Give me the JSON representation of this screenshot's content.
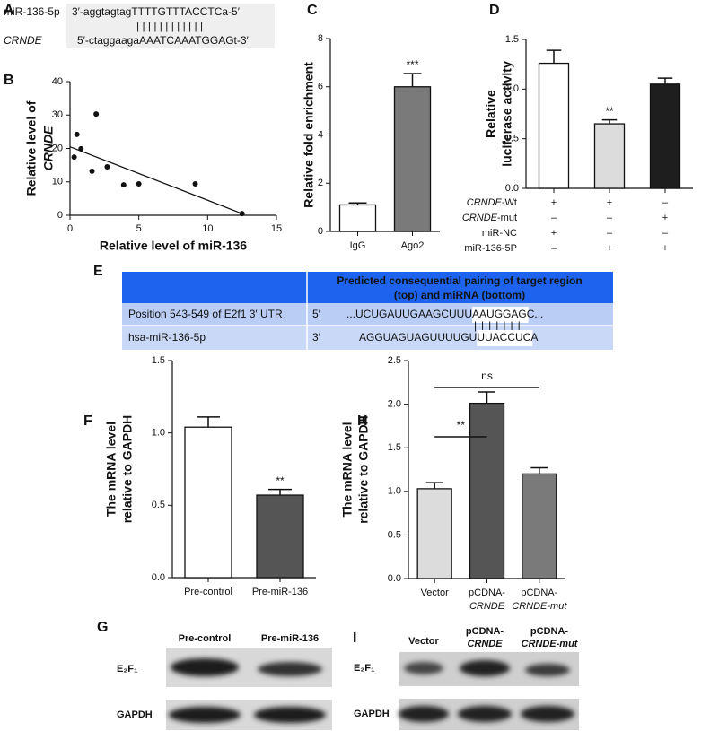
{
  "panel_a": {
    "panel": "A",
    "rows": [
      {
        "name": "miR-136-5p",
        "sequence": "3′-aggtagtagTTTTGTTTACCTCa-5′"
      },
      {
        "name": "CRNDE",
        "sequence": "5′-ctaggaagaAAATCAAATGGAGt-3′"
      }
    ],
    "pairing": "| | | | | | | | | | | |"
  },
  "chart_data": [
    {
      "panel": "B",
      "type": "scatter",
      "xlabel": "Relative level of miR-136",
      "ylabel": [
        "Relative level of",
        "CRNDE"
      ],
      "x": [
        0.3,
        0.5,
        0.8,
        1.6,
        1.9,
        2.7,
        3.9,
        5.0,
        9.1,
        12.5
      ],
      "y": [
        17.4,
        24.2,
        19.9,
        13.2,
        30.3,
        14.5,
        9.1,
        9.4,
        9.4,
        0.5
      ],
      "trendline": {
        "x": [
          0,
          12.5
        ],
        "y": [
          20.5,
          0.5
        ]
      },
      "color": "#111",
      "xlim": [
        0,
        15
      ],
      "xticks": [
        0,
        5,
        10,
        15
      ],
      "ylim": [
        0,
        40
      ],
      "yticks": [
        0,
        10,
        20,
        30,
        40
      ]
    },
    {
      "panel": "C",
      "type": "bar",
      "ylabel": [
        "Relative fold enrichment"
      ],
      "categories": [
        "IgG",
        "Ago2"
      ],
      "values": [
        1.1,
        6.0
      ],
      "errors": [
        0.08,
        0.55
      ],
      "colors": [
        "#ffffff",
        "#7a7a7a"
      ],
      "ylim": [
        0,
        8
      ],
      "yticks": [
        0,
        2,
        4,
        6,
        8
      ],
      "annotations": [
        {
          "text": "***",
          "index": 1
        }
      ]
    },
    {
      "panel": "D",
      "type": "bar",
      "ylabel": [
        "Relative",
        "luciferase activity"
      ],
      "values": [
        1.26,
        0.65,
        1.05
      ],
      "errors": [
        0.13,
        0.04,
        0.06
      ],
      "colors": [
        "#ffffff",
        "#dcdcdc",
        "#1e1e1e"
      ],
      "ylim": [
        0,
        1.5
      ],
      "yticks": [
        {
          "value": 0,
          "label": "0.0"
        },
        {
          "value": 0.5,
          "label": "0.5"
        },
        {
          "value": 1,
          "label": "1.0"
        },
        {
          "value": 1.5,
          "label": "1.5"
        }
      ],
      "annotations": [
        {
          "text": "**",
          "index": 1
        }
      ],
      "conditions": [
        {
          "label": [
            "CRNDE",
            "-Wt"
          ],
          "marks": [
            "+",
            "+",
            "–"
          ]
        },
        {
          "label": [
            "CRNDE",
            "-mut"
          ],
          "marks": [
            "–",
            "–",
            "+"
          ]
        },
        {
          "label": [
            "miR-NC"
          ],
          "marks": [
            "+",
            "–",
            "–"
          ]
        },
        {
          "label": [
            "miR-136-5P"
          ],
          "marks": [
            "–",
            "+",
            "+"
          ]
        }
      ]
    },
    {
      "panel": "F",
      "type": "bar",
      "ylabel": [
        "The mRNA level",
        "relative to GAPDH"
      ],
      "categories": [
        "Pre-control",
        "Pre-miR-136"
      ],
      "values": [
        1.04,
        0.57
      ],
      "errors": [
        0.07,
        0.04
      ],
      "colors": [
        "#ffffff",
        "#555555"
      ],
      "ylim": [
        0,
        1.5
      ],
      "yticks": [
        {
          "value": 0,
          "label": "0.0"
        },
        {
          "value": 0.5,
          "label": "0.5"
        },
        {
          "value": 1,
          "label": "1.0"
        },
        {
          "value": 1.5,
          "label": "1.5"
        }
      ],
      "annotations": [
        {
          "text": "**",
          "index": 1
        }
      ]
    },
    {
      "panel": "H",
      "type": "bar",
      "ylabel": [
        "The mRNA level",
        "relative to GAPDH"
      ],
      "categories": [
        [
          "Vector"
        ],
        [
          "pCDNA-",
          "CRNDE"
        ],
        [
          "pCDNA-",
          "CRNDE-mut"
        ]
      ],
      "values": [
        1.03,
        2.01,
        1.2
      ],
      "errors": [
        0.07,
        0.13,
        0.07
      ],
      "colors": [
        "#dcdcdc",
        "#555555",
        "#7a7a7a"
      ],
      "ylim": [
        0,
        2.5
      ],
      "yticks": [
        {
          "value": 0,
          "label": "0.0"
        },
        {
          "value": 0.5,
          "label": "0.5"
        },
        {
          "value": 1,
          "label": "1.0"
        },
        {
          "value": 1.5,
          "label": "1.5"
        },
        {
          "value": 2,
          "label": "2.0"
        },
        {
          "value": 2.5,
          "label": "2.5"
        }
      ],
      "brackets": [
        {
          "text": "**",
          "between": [
            0,
            1
          ]
        },
        {
          "text": "ns",
          "between": [
            0,
            2
          ]
        }
      ]
    }
  ],
  "panel_e": {
    "panel": "E",
    "header": [
      "Predicted consequential pairing of target region",
      "(top) and miRNA (bottom)"
    ],
    "rows": [
      {
        "label": "Position 543-549 of E2f1 3′ UTR",
        "end": "5′",
        "sequence": [
          "...UCUGAUUGAAGCUUU",
          "AAUGGAG",
          "C..."
        ]
      },
      {
        "label": "hsa-miR-136-5p",
        "end": "3′",
        "sequence": [
          "AGGUAGUAGUUUUGU",
          "UUACCUC",
          "A"
        ]
      }
    ],
    "pairing": "|||||||"
  },
  "panel_g": {
    "panel": "G",
    "lanes": [
      "Pre-control",
      "Pre-miR-136"
    ],
    "rows": [
      "E₂F₁",
      "GAPDH"
    ]
  },
  "panel_i": {
    "panel": "I",
    "lanes": [
      [
        "Vector"
      ],
      [
        "pCDNA-",
        "CRNDE"
      ],
      [
        "pCDNA-",
        "CRNDE-mut"
      ]
    ],
    "rows": [
      "E₂F₁",
      "GAPDH"
    ]
  }
}
